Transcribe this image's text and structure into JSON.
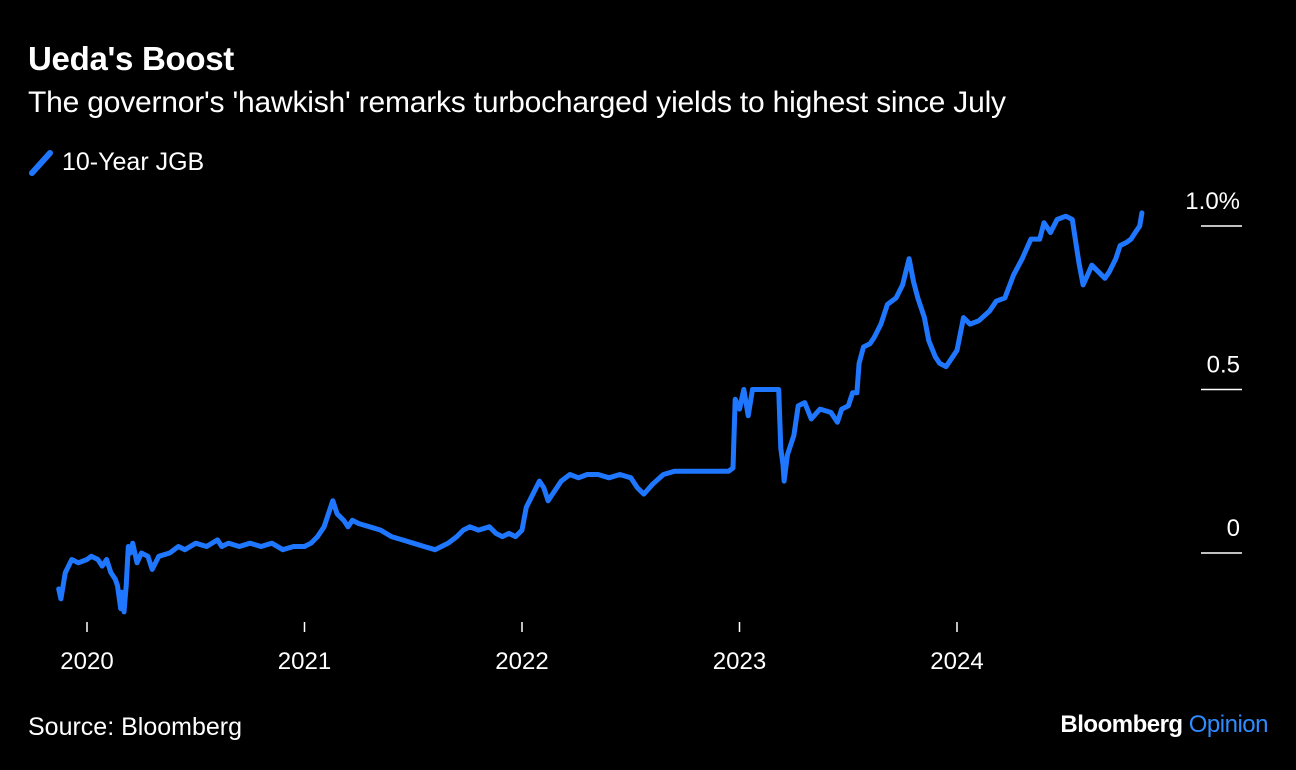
{
  "chart_data": {
    "type": "line",
    "title": "Ueda's Boost",
    "subtitle": "The governor's 'hawkish' remarks turbocharged yields to highest since July",
    "legend": [
      {
        "name": "10-Year JGB",
        "color": "#1f77ff"
      }
    ],
    "legend_placement": "top-left",
    "y_ticks": [
      {
        "value": 1.0,
        "label": "1.0%"
      },
      {
        "value": 0.5,
        "label": "0.5"
      },
      {
        "value": 0,
        "label": "0"
      }
    ],
    "ylim": [
      -0.25,
      1.1
    ],
    "x_ticks": [
      {
        "value": 2020.0,
        "label": "2020"
      },
      {
        "value": 2021.0,
        "label": "2021"
      },
      {
        "value": 2022.0,
        "label": "2022"
      },
      {
        "value": 2023.0,
        "label": "2023"
      },
      {
        "value": 2024.0,
        "label": "2024"
      }
    ],
    "xlim": [
      2019.72,
      2025.0
    ],
    "grid": false,
    "series": [
      {
        "name": "10-Year JGB",
        "color": "#1f77ff",
        "points": [
          [
            2019.87,
            -0.11
          ],
          [
            2019.88,
            -0.14
          ],
          [
            2019.9,
            -0.06
          ],
          [
            2019.93,
            -0.02
          ],
          [
            2019.96,
            -0.03
          ],
          [
            2020.0,
            -0.02
          ],
          [
            2020.02,
            -0.01
          ],
          [
            2020.05,
            -0.02
          ],
          [
            2020.07,
            -0.04
          ],
          [
            2020.09,
            -0.02
          ],
          [
            2020.11,
            -0.06
          ],
          [
            2020.13,
            -0.08
          ],
          [
            2020.14,
            -0.1
          ],
          [
            2020.155,
            -0.17
          ],
          [
            2020.16,
            -0.12
          ],
          [
            2020.17,
            -0.18
          ],
          [
            2020.18,
            -0.1
          ],
          [
            2020.19,
            0.02
          ],
          [
            2020.2,
            0.0
          ],
          [
            2020.21,
            0.03
          ],
          [
            2020.23,
            -0.03
          ],
          [
            2020.25,
            0.0
          ],
          [
            2020.28,
            -0.01
          ],
          [
            2020.3,
            -0.05
          ],
          [
            2020.33,
            -0.01
          ],
          [
            2020.38,
            0.0
          ],
          [
            2020.42,
            0.02
          ],
          [
            2020.45,
            0.01
          ],
          [
            2020.5,
            0.03
          ],
          [
            2020.55,
            0.02
          ],
          [
            2020.6,
            0.04
          ],
          [
            2020.62,
            0.02
          ],
          [
            2020.65,
            0.03
          ],
          [
            2020.7,
            0.02
          ],
          [
            2020.75,
            0.03
          ],
          [
            2020.8,
            0.02
          ],
          [
            2020.85,
            0.03
          ],
          [
            2020.9,
            0.01
          ],
          [
            2020.95,
            0.02
          ],
          [
            2021.0,
            0.02
          ],
          [
            2021.03,
            0.03
          ],
          [
            2021.06,
            0.05
          ],
          [
            2021.09,
            0.08
          ],
          [
            2021.11,
            0.12
          ],
          [
            2021.13,
            0.16
          ],
          [
            2021.15,
            0.12
          ],
          [
            2021.18,
            0.1
          ],
          [
            2021.2,
            0.08
          ],
          [
            2021.22,
            0.1
          ],
          [
            2021.25,
            0.09
          ],
          [
            2021.3,
            0.08
          ],
          [
            2021.35,
            0.07
          ],
          [
            2021.4,
            0.05
          ],
          [
            2021.45,
            0.04
          ],
          [
            2021.5,
            0.03
          ],
          [
            2021.55,
            0.02
          ],
          [
            2021.6,
            0.01
          ],
          [
            2021.63,
            0.02
          ],
          [
            2021.66,
            0.03
          ],
          [
            2021.7,
            0.05
          ],
          [
            2021.73,
            0.07
          ],
          [
            2021.76,
            0.08
          ],
          [
            2021.8,
            0.07
          ],
          [
            2021.85,
            0.08
          ],
          [
            2021.88,
            0.06
          ],
          [
            2021.91,
            0.05
          ],
          [
            2021.94,
            0.06
          ],
          [
            2021.97,
            0.05
          ],
          [
            2022.0,
            0.07
          ],
          [
            2022.02,
            0.14
          ],
          [
            2022.05,
            0.18
          ],
          [
            2022.08,
            0.22
          ],
          [
            2022.1,
            0.2
          ],
          [
            2022.12,
            0.16
          ],
          [
            2022.14,
            0.18
          ],
          [
            2022.18,
            0.22
          ],
          [
            2022.22,
            0.24
          ],
          [
            2022.26,
            0.23
          ],
          [
            2022.3,
            0.24
          ],
          [
            2022.35,
            0.24
          ],
          [
            2022.4,
            0.23
          ],
          [
            2022.45,
            0.24
          ],
          [
            2022.5,
            0.23
          ],
          [
            2022.53,
            0.2
          ],
          [
            2022.56,
            0.18
          ],
          [
            2022.6,
            0.21
          ],
          [
            2022.65,
            0.24
          ],
          [
            2022.7,
            0.25
          ],
          [
            2022.75,
            0.25
          ],
          [
            2022.8,
            0.25
          ],
          [
            2022.85,
            0.25
          ],
          [
            2022.9,
            0.25
          ],
          [
            2022.95,
            0.25
          ],
          [
            2022.97,
            0.26
          ],
          [
            2022.98,
            0.47
          ],
          [
            2023.0,
            0.44
          ],
          [
            2023.02,
            0.5
          ],
          [
            2023.04,
            0.42
          ],
          [
            2023.06,
            0.5
          ],
          [
            2023.08,
            0.5
          ],
          [
            2023.1,
            0.5
          ],
          [
            2023.15,
            0.5
          ],
          [
            2023.18,
            0.5
          ],
          [
            2023.19,
            0.32
          ],
          [
            2023.2,
            0.27
          ],
          [
            2023.205,
            0.22
          ],
          [
            2023.22,
            0.3
          ],
          [
            2023.25,
            0.36
          ],
          [
            2023.27,
            0.45
          ],
          [
            2023.3,
            0.46
          ],
          [
            2023.33,
            0.41
          ],
          [
            2023.37,
            0.44
          ],
          [
            2023.42,
            0.43
          ],
          [
            2023.45,
            0.4
          ],
          [
            2023.47,
            0.44
          ],
          [
            2023.5,
            0.45
          ],
          [
            2023.52,
            0.49
          ],
          [
            2023.54,
            0.49
          ],
          [
            2023.55,
            0.58
          ],
          [
            2023.57,
            0.63
          ],
          [
            2023.6,
            0.64
          ],
          [
            2023.62,
            0.66
          ],
          [
            2023.65,
            0.7
          ],
          [
            2023.68,
            0.76
          ],
          [
            2023.72,
            0.78
          ],
          [
            2023.75,
            0.82
          ],
          [
            2023.78,
            0.9
          ],
          [
            2023.8,
            0.83
          ],
          [
            2023.82,
            0.78
          ],
          [
            2023.85,
            0.72
          ],
          [
            2023.87,
            0.65
          ],
          [
            2023.9,
            0.6
          ],
          [
            2023.92,
            0.58
          ],
          [
            2023.95,
            0.57
          ],
          [
            2024.0,
            0.62
          ],
          [
            2024.03,
            0.72
          ],
          [
            2024.06,
            0.7
          ],
          [
            2024.1,
            0.71
          ],
          [
            2024.15,
            0.74
          ],
          [
            2024.18,
            0.77
          ],
          [
            2024.22,
            0.78
          ],
          [
            2024.26,
            0.85
          ],
          [
            2024.3,
            0.9
          ],
          [
            2024.34,
            0.96
          ],
          [
            2024.38,
            0.96
          ],
          [
            2024.4,
            1.01
          ],
          [
            2024.43,
            0.98
          ],
          [
            2024.46,
            1.02
          ],
          [
            2024.5,
            1.03
          ],
          [
            2024.53,
            1.02
          ],
          [
            2024.56,
            0.89
          ],
          [
            2024.58,
            0.82
          ],
          [
            2024.6,
            0.85
          ],
          [
            2024.62,
            0.88
          ],
          [
            2024.65,
            0.86
          ],
          [
            2024.68,
            0.84
          ],
          [
            2024.7,
            0.86
          ],
          [
            2024.73,
            0.9
          ],
          [
            2024.75,
            0.94
          ],
          [
            2024.78,
            0.95
          ],
          [
            2024.8,
            0.96
          ],
          [
            2024.82,
            0.98
          ],
          [
            2024.84,
            1.0
          ],
          [
            2024.85,
            1.04
          ]
        ]
      }
    ]
  },
  "source": "Source: Bloomberg",
  "brand": {
    "name": "Bloomberg",
    "suffix": "Opinion"
  }
}
